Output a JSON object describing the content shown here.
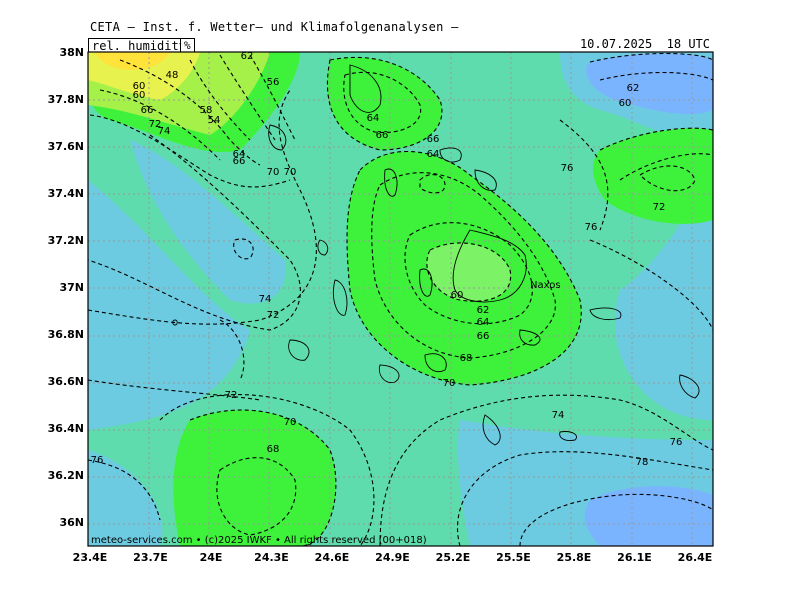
{
  "header": {
    "title": "CETA — Inst. f. Wetter— und Klimafolgenanalysen —",
    "variable": "rel. humidity",
    "unit": "%",
    "datetime": "10.07.2025  18 UTC"
  },
  "map": {
    "lat_ticks": [
      "38N",
      "37.8N",
      "37.6N",
      "37.4N",
      "37.2N",
      "37N",
      "36.8N",
      "36.6N",
      "36.4N",
      "36.2N",
      "36N"
    ],
    "lon_ticks": [
      "23.4E",
      "23.7E",
      "24E",
      "24.3E",
      "24.6E",
      "24.9E",
      "25.2E",
      "25.5E",
      "25.8E",
      "26.1E",
      "26.4E"
    ],
    "place_label": "Naxos",
    "colors": {
      "low_humidity": "#f4f25a",
      "mid_humidity": "#3ef23c",
      "teal": "#5fdcae",
      "cyan": "#6ccbe0",
      "high_humidity": "#7ab4ff"
    }
  },
  "contour_labels": [
    {
      "text": "62"
    },
    {
      "text": "56"
    },
    {
      "text": "48"
    },
    {
      "text": "60"
    },
    {
      "text": "60"
    },
    {
      "text": "66"
    },
    {
      "text": "58"
    },
    {
      "text": "54"
    },
    {
      "text": "72"
    },
    {
      "text": "74"
    },
    {
      "text": "64"
    },
    {
      "text": "66"
    },
    {
      "text": "70"
    },
    {
      "text": "70"
    },
    {
      "text": "64"
    },
    {
      "text": "66"
    },
    {
      "text": "66"
    },
    {
      "text": "64"
    },
    {
      "text": "76"
    },
    {
      "text": "62"
    },
    {
      "text": "60"
    },
    {
      "text": "72"
    },
    {
      "text": "76"
    },
    {
      "text": "60"
    },
    {
      "text": "62"
    },
    {
      "text": "64"
    },
    {
      "text": "66"
    },
    {
      "text": "68"
    },
    {
      "text": "70"
    },
    {
      "text": "74"
    },
    {
      "text": "72"
    },
    {
      "text": "72"
    },
    {
      "text": "70"
    },
    {
      "text": "68"
    },
    {
      "text": "74"
    },
    {
      "text": "76"
    },
    {
      "text": "78"
    },
    {
      "text": "76"
    }
  ],
  "footer": {
    "copyright": "meteo-services.com • (c)2025 IWKF • All rights reserved (00+018)"
  }
}
